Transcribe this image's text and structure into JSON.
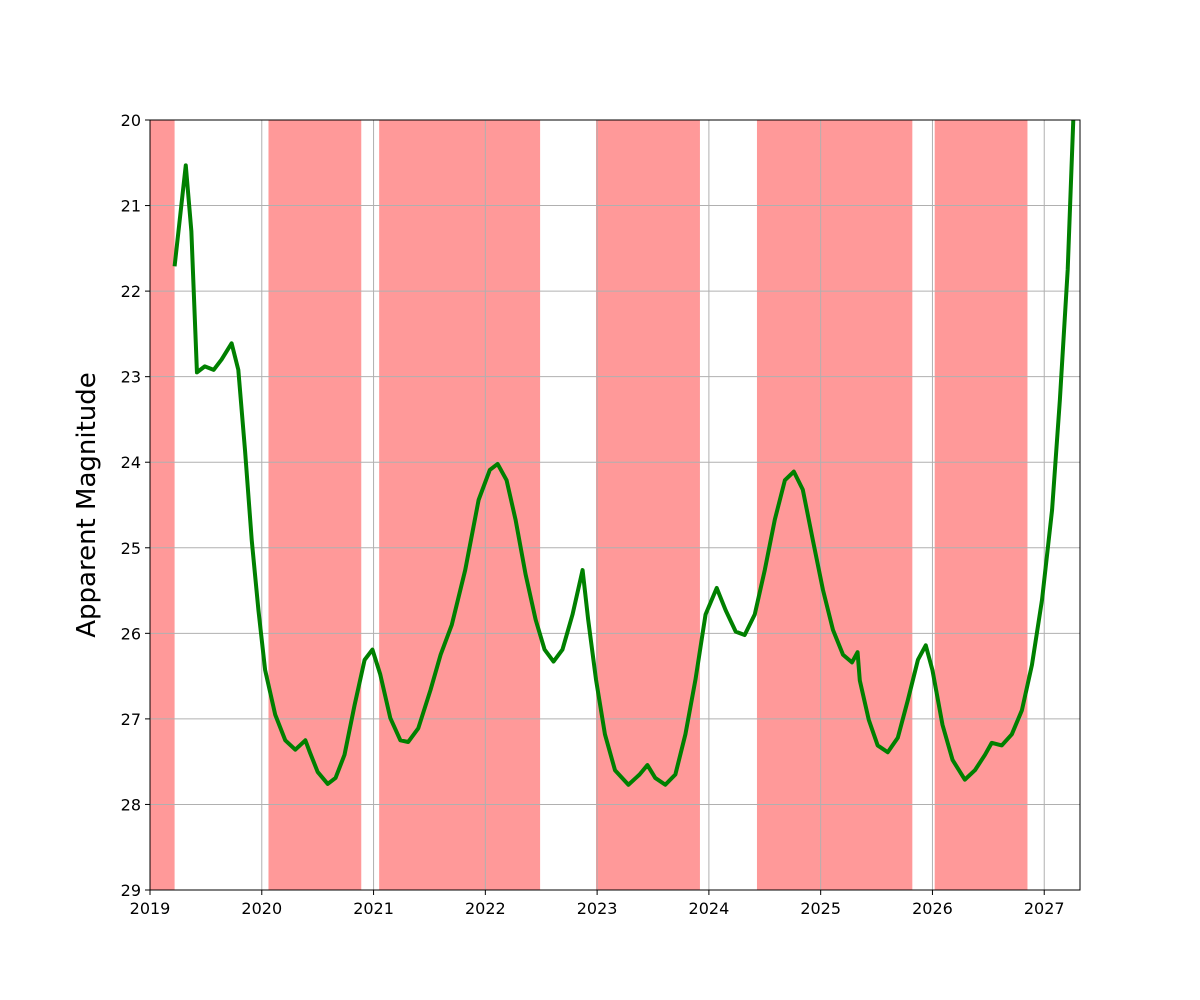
{
  "chart_data": {
    "type": "line",
    "ylabel": "Apparent Magnitude",
    "xlim": [
      2019,
      2027.32
    ],
    "xticks": [
      2019,
      2020,
      2021,
      2022,
      2023,
      2024,
      2025,
      2026,
      2027
    ],
    "ylim": [
      29,
      20
    ],
    "yticks": [
      20,
      21,
      22,
      23,
      24,
      25,
      26,
      27,
      28,
      29
    ],
    "grid": true,
    "shaded_regions": {
      "color": "#ff9999",
      "spans": [
        [
          2019.0,
          2019.22
        ],
        [
          2020.06,
          2020.89
        ],
        [
          2021.05,
          2022.49
        ],
        [
          2022.99,
          2023.92
        ],
        [
          2024.43,
          2025.82
        ],
        [
          2026.02,
          2026.85
        ]
      ]
    },
    "series": [
      {
        "color": "#008000",
        "x": [
          2019.22,
          2019.32,
          2019.37,
          2019.42,
          2019.49,
          2019.57,
          2019.64,
          2019.73,
          2019.79,
          2019.85,
          2019.91,
          2019.97,
          2020.03,
          2020.12,
          2020.21,
          2020.3,
          2020.39,
          2020.43,
          2020.5,
          2020.59,
          2020.66,
          2020.74,
          2020.83,
          2020.92,
          2020.99,
          2021.06,
          2021.15,
          2021.24,
          2021.31,
          2021.4,
          2021.51,
          2021.6,
          2021.7,
          2021.82,
          2021.94,
          2022.04,
          2022.11,
          2022.19,
          2022.27,
          2022.36,
          2022.45,
          2022.53,
          2022.61,
          2022.69,
          2022.78,
          2022.87,
          2022.92,
          2022.99,
          2023.07,
          2023.16,
          2023.28,
          2023.38,
          2023.45,
          2023.52,
          2023.61,
          2023.7,
          2023.79,
          2023.88,
          2023.97,
          2024.07,
          2024.15,
          2024.24,
          2024.32,
          2024.41,
          2024.5,
          2024.59,
          2024.68,
          2024.76,
          2024.84,
          2024.93,
          2025.02,
          2025.11,
          2025.2,
          2025.28,
          2025.33,
          2025.35,
          2025.43,
          2025.51,
          2025.6,
          2025.69,
          2025.78,
          2025.87,
          2025.94,
          2026.0,
          2026.09,
          2026.18,
          2026.29,
          2026.38,
          2026.47,
          2026.53,
          2026.62,
          2026.71,
          2026.8,
          2026.89,
          2026.98,
          2027.07,
          2027.14,
          2027.21,
          2027.26
        ],
        "values": [
          21.71,
          20.53,
          21.3,
          22.95,
          22.88,
          22.92,
          22.8,
          22.61,
          22.92,
          23.86,
          24.91,
          25.73,
          26.43,
          26.95,
          27.25,
          27.36,
          27.25,
          27.39,
          27.62,
          27.76,
          27.69,
          27.42,
          26.84,
          26.31,
          26.19,
          26.48,
          26.99,
          27.25,
          27.27,
          27.11,
          26.66,
          26.25,
          25.9,
          25.26,
          24.44,
          24.09,
          24.02,
          24.21,
          24.67,
          25.31,
          25.84,
          26.19,
          26.33,
          26.19,
          25.78,
          25.26,
          25.84,
          26.54,
          27.18,
          27.6,
          27.77,
          27.65,
          27.54,
          27.69,
          27.77,
          27.65,
          27.18,
          26.54,
          25.78,
          25.47,
          25.73,
          25.98,
          26.02,
          25.78,
          25.26,
          24.67,
          24.21,
          24.11,
          24.32,
          24.91,
          25.49,
          25.96,
          26.25,
          26.34,
          26.22,
          26.55,
          27.01,
          27.31,
          27.39,
          27.22,
          26.78,
          26.31,
          26.14,
          26.43,
          27.07,
          27.48,
          27.71,
          27.6,
          27.42,
          27.28,
          27.31,
          27.18,
          26.9,
          26.37,
          25.61,
          24.56,
          23.27,
          21.75,
          20.0
        ]
      }
    ]
  }
}
